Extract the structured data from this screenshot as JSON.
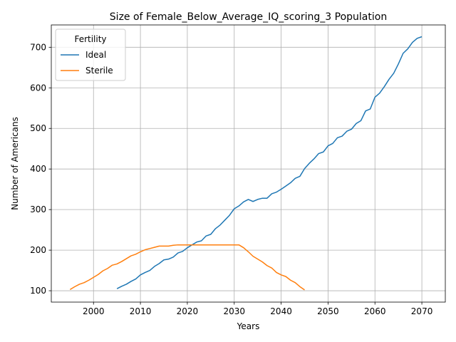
{
  "chart_data": {
    "type": "line",
    "title": "Size of Female_Below_Average_IQ_scoring_3 Population",
    "xlabel": "Years",
    "ylabel": "Number of Americans",
    "xlim": [
      1991,
      2075
    ],
    "ylim": [
      72,
      755
    ],
    "xticks": [
      2000,
      2010,
      2020,
      2030,
      2040,
      2050,
      2060,
      2070
    ],
    "yticks": [
      100,
      200,
      300,
      400,
      500,
      600,
      700
    ],
    "grid": true,
    "legend": {
      "title": "Fertility",
      "placement": "upper-left"
    },
    "series": [
      {
        "name": "Ideal",
        "color": "#1f77b4",
        "x": [
          2005,
          2006,
          2007,
          2008,
          2009,
          2010,
          2011,
          2012,
          2013,
          2014,
          2015,
          2016,
          2017,
          2018,
          2019,
          2020,
          2021,
          2022,
          2023,
          2024,
          2025,
          2026,
          2027,
          2028,
          2029,
          2030,
          2031,
          2032,
          2033,
          2034,
          2035,
          2036,
          2037,
          2038,
          2039,
          2040,
          2041,
          2042,
          2043,
          2044,
          2045,
          2046,
          2047,
          2048,
          2049,
          2050,
          2051,
          2052,
          2053,
          2054,
          2055,
          2056,
          2057,
          2058,
          2059,
          2060,
          2061,
          2062,
          2063,
          2064,
          2065,
          2066,
          2067,
          2068,
          2069,
          2070
        ],
        "y": [
          105,
          111,
          116,
          123,
          129,
          139,
          145,
          150,
          160,
          167,
          176,
          178,
          183,
          193,
          197,
          206,
          213,
          220,
          223,
          235,
          239,
          253,
          262,
          274,
          286,
          302,
          309,
          319,
          325,
          320,
          325,
          328,
          328,
          339,
          343,
          350,
          358,
          366,
          377,
          382,
          401,
          414,
          425,
          438,
          442,
          457,
          463,
          477,
          481,
          493,
          498,
          512,
          519,
          543,
          548,
          577,
          587,
          603,
          621,
          636,
          659,
          685,
          696,
          712,
          722,
          726
        ]
      },
      {
        "name": "Sterile",
        "color": "#ff7f0e",
        "x": [
          1995,
          1996,
          1997,
          1998,
          1999,
          2000,
          2001,
          2002,
          2003,
          2004,
          2005,
          2006,
          2007,
          2008,
          2009,
          2010,
          2011,
          2012,
          2013,
          2014,
          2015,
          2016,
          2017,
          2018,
          2019,
          2020,
          2021,
          2022,
          2023,
          2024,
          2025,
          2026,
          2027,
          2028,
          2029,
          2030,
          2031,
          2032,
          2033,
          2034,
          2035,
          2036,
          2037,
          2038,
          2039,
          2040,
          2041,
          2042,
          2043,
          2044,
          2045
        ],
        "y": [
          103,
          110,
          116,
          120,
          126,
          133,
          140,
          149,
          155,
          163,
          166,
          172,
          179,
          186,
          190,
          196,
          201,
          204,
          207,
          210,
          210,
          210,
          212,
          213,
          213,
          213,
          213,
          213,
          213,
          213,
          213,
          213,
          213,
          213,
          213,
          213,
          213,
          206,
          196,
          185,
          178,
          171,
          162,
          156,
          145,
          139,
          135,
          126,
          120,
          110,
          102
        ]
      }
    ]
  }
}
